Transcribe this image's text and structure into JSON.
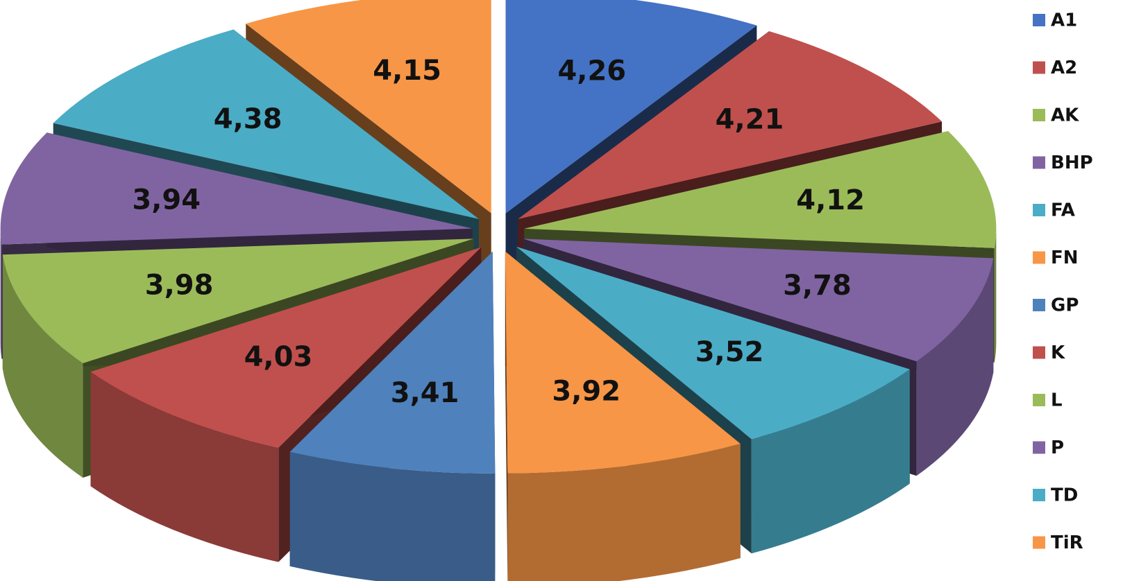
{
  "chart_data": {
    "type": "pie",
    "title": "",
    "labels": [
      "A1",
      "A2",
      "AK",
      "BHP",
      "FA",
      "FN",
      "GP",
      "K",
      "L",
      "P",
      "TD",
      "TiR"
    ],
    "values": [
      4.26,
      4.21,
      4.12,
      3.78,
      3.52,
      3.92,
      3.41,
      4.03,
      3.98,
      3.94,
      4.38,
      4.15
    ],
    "value_labels": [
      "4,26",
      "4,21",
      "4,12",
      "3,78",
      "3,52",
      "3,92",
      "3,41",
      "4,03",
      "3,98",
      "3,94",
      "4,38",
      "4,15"
    ],
    "colors": [
      "#4472c4",
      "#c0504d",
      "#9bbb59",
      "#8064a2",
      "#4bacc6",
      "#f79646",
      "#4f81bd",
      "#c0504d",
      "#9bbb59",
      "#8064a2",
      "#4bacc6",
      "#f79646"
    ],
    "legend": "right",
    "style": "3d-exploded"
  }
}
